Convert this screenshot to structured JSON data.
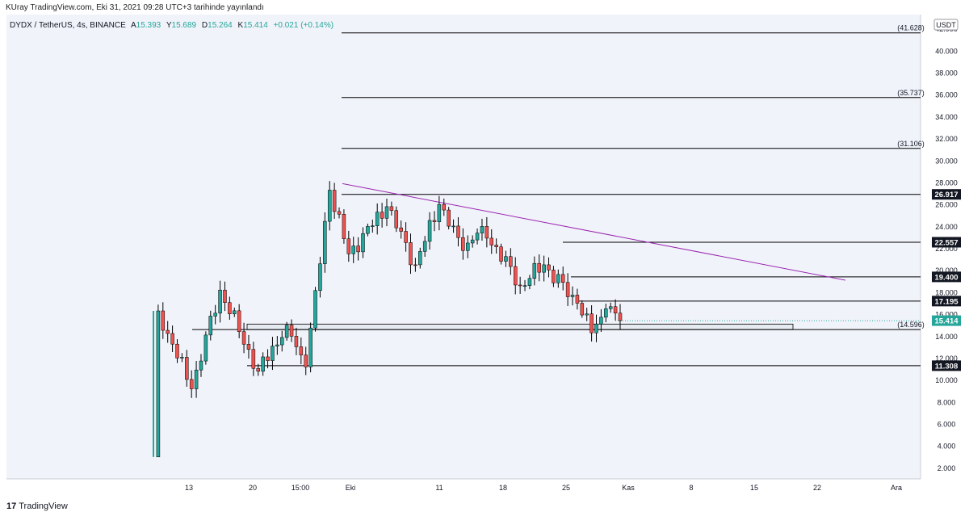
{
  "publisher": "KUray TradingView.com, Eki 31, 2021 09:28 UTC+3 tarihinde yayınlandı",
  "symbol": {
    "name": "DYDX / TetherUS, 4s, BINANCE",
    "open_label": "A",
    "open": "15.393",
    "high_label": "Y",
    "high": "15.689",
    "low_label": "D",
    "low": "15.264",
    "close_label": "K",
    "close": "15.414",
    "change": "+0.021 (+0.14%)"
  },
  "currency": "USDT",
  "footer": {
    "brand": "TradingView",
    "logo_icon": "tradingview-logo-icon"
  },
  "colors": {
    "up": "#26a69a",
    "down": "#ef5350",
    "wick": "#000000",
    "background": "#f0f3fa",
    "level_line": "#000000",
    "trendline": "#9c27b0",
    "current_price_badge": "#26a69a",
    "level_badge": "#131722"
  },
  "chart_data": {
    "type": "candlestick",
    "ylim": [
      1.0,
      43.3
    ],
    "y_ticks": [
      "2.000",
      "4.000",
      "6.000",
      "8.000",
      "10.000",
      "12.000",
      "14.000",
      "16.000",
      "18.000",
      "20.000",
      "22.000",
      "24.000",
      "26.000",
      "28.000",
      "30.000",
      "32.000",
      "34.000",
      "36.000",
      "38.000",
      "40.000",
      "42.000"
    ],
    "x_ticks": [
      "13",
      "20",
      "15:00",
      "Eki",
      "11",
      "18",
      "25",
      "Kas",
      "8",
      "15",
      "22",
      "Ara"
    ],
    "ohlc_anchors": [
      {
        "t": 0,
        "price": 3.0,
        "note": "listing low"
      },
      {
        "t": 1,
        "price": 16.3
      },
      {
        "t": 8,
        "price": 9.2
      },
      {
        "t": 14,
        "price": 18.2
      },
      {
        "t": 22,
        "price": 10.8
      },
      {
        "t": 28,
        "price": 15.0
      },
      {
        "t": 32,
        "price": 11.2
      },
      {
        "t": 37,
        "price": 27.3
      },
      {
        "t": 41,
        "price": 21.5
      },
      {
        "t": 49,
        "price": 25.8
      },
      {
        "t": 55,
        "price": 20.5
      },
      {
        "t": 60,
        "price": 26.0
      },
      {
        "t": 65,
        "price": 21.8
      },
      {
        "t": 69,
        "price": 24.0
      },
      {
        "t": 77,
        "price": 18.6
      },
      {
        "t": 82,
        "price": 20.5
      },
      {
        "t": 89,
        "price": 17.0
      },
      {
        "t": 92,
        "price": 14.3
      },
      {
        "t": 95,
        "price": 16.5
      },
      {
        "t": 98,
        "price": 15.414
      }
    ],
    "horizontal_levels": [
      {
        "value": 41.628,
        "label": "(41.628)",
        "style": "plain"
      },
      {
        "value": 35.737,
        "label": "(35.737)",
        "style": "plain"
      },
      {
        "value": 31.106,
        "label": "(31.106)",
        "style": "plain"
      },
      {
        "value": 26.917,
        "label": "26.917",
        "style": "badge"
      },
      {
        "value": 22.557,
        "label": "22.557",
        "style": "badge"
      },
      {
        "value": 19.4,
        "label": "19.400",
        "style": "badge"
      },
      {
        "value": 17.195,
        "label": "17.195",
        "style": "badge"
      },
      {
        "value": 15.414,
        "label": "15.414",
        "style": "current"
      },
      {
        "value": 14.596,
        "label": "(14.596)",
        "style": "plain"
      },
      {
        "value": 11.308,
        "label": "11.308",
        "style": "badge"
      }
    ],
    "zone": {
      "from": 14.596,
      "to": 15.1
    },
    "trendline": {
      "from": 27.9,
      "to": 19.1
    }
  }
}
